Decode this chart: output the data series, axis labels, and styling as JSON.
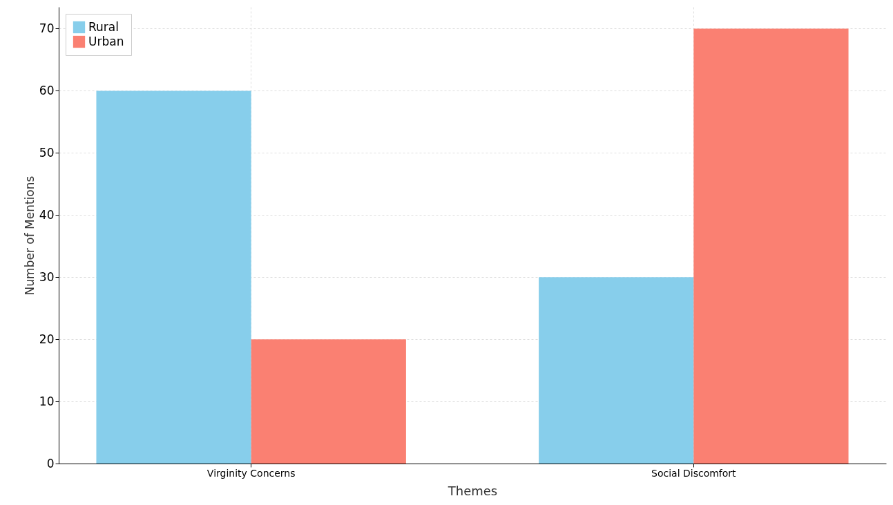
{
  "chart_data": {
    "type": "bar",
    "xlabel": "Themes",
    "ylabel": "Number of Mentions",
    "categories": [
      "Virginity Concerns",
      "Social Discomfort"
    ],
    "series": [
      {
        "name": "Rural",
        "color": "#87ceeb",
        "values": [
          60,
          30
        ]
      },
      {
        "name": "Urban",
        "color": "#fa8072",
        "values": [
          20,
          70
        ]
      }
    ],
    "ylim": [
      0,
      73.5
    ],
    "yticks": [
      0,
      10,
      20,
      30,
      40,
      50,
      60,
      70
    ],
    "grid": true,
    "legend": "top left"
  }
}
